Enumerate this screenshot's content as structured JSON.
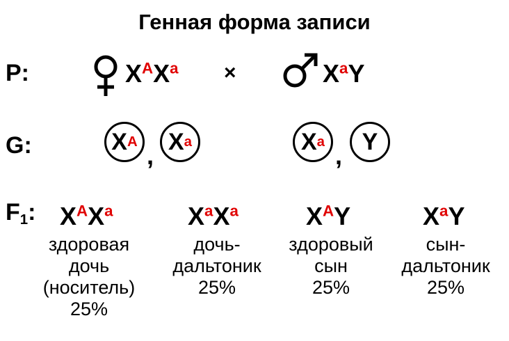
{
  "title": "Генная форма записи",
  "colors": {
    "allele_superscript": "#e00000",
    "text": "#000000"
  },
  "parents": {
    "label": "P:",
    "female_symbol": "♀",
    "female": {
      "base1": "X",
      "sup1": "A",
      "base2": "X",
      "sup2": "a"
    },
    "cross": "×",
    "male_symbol": "♂",
    "male": {
      "base1": "X",
      "sup1": "a",
      "base2": "Y"
    }
  },
  "gametes": {
    "label": "G:",
    "items": [
      {
        "base": "X",
        "sup": "A"
      },
      {
        "base": "X",
        "sup": "a"
      },
      {
        "base": "X",
        "sup": "a"
      },
      {
        "base": "Y",
        "sup": ""
      }
    ],
    "separator": ","
  },
  "offspring": {
    "label_main": "F",
    "label_sub": "1",
    "label_colon": ":",
    "items": [
      {
        "base1": "X",
        "sup1": "A",
        "base2": "X",
        "sup2": "a",
        "line1": "здоровая",
        "line2": "дочь",
        "line3": "(носитель)",
        "percent": "25%"
      },
      {
        "base1": "X",
        "sup1": "a",
        "base2": "X",
        "sup2": "a",
        "line1": "дочь-",
        "line2": "дальтоник",
        "percent": "25%"
      },
      {
        "base1": "X",
        "sup1": "A",
        "base2": "Y",
        "sup2": "",
        "line1": "здоровый",
        "line2": "сын",
        "percent": "25%"
      },
      {
        "base1": "X",
        "sup1": "a",
        "base2": "Y",
        "sup2": "",
        "line1": "сын-",
        "line2": "дальтоник",
        "percent": "25%"
      }
    ]
  }
}
